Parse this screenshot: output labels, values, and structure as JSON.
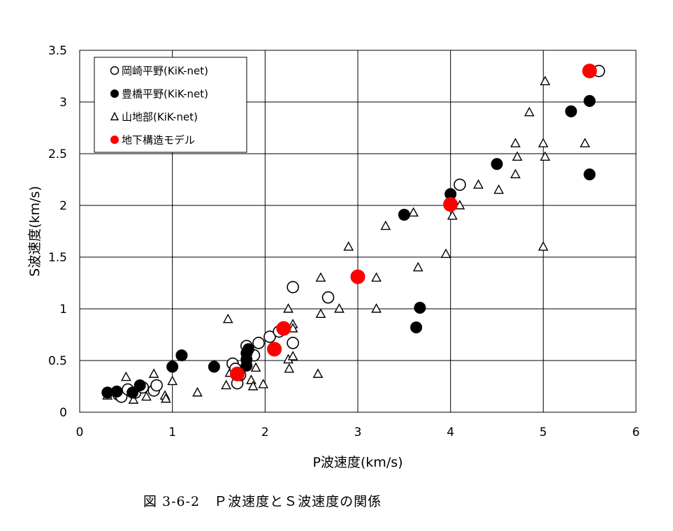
{
  "chart_data": {
    "type": "scatter",
    "xlabel": "P波速度(km/s)",
    "ylabel": "S波速度(km/s)",
    "xlim": [
      0,
      6
    ],
    "ylim": [
      0,
      3.5
    ],
    "x_ticks": [
      "0",
      "1",
      "2",
      "3",
      "4",
      "5",
      "6"
    ],
    "y_ticks": [
      "0",
      "0.5",
      "1",
      "1.5",
      "2",
      "2.5",
      "3",
      "3.5"
    ],
    "grid": true,
    "legend_position": "top-left",
    "series": [
      {
        "name": "岡崎平野(KiK-net)",
        "marker": "open-circle",
        "color": "#000000",
        "points": [
          [
            0.42,
            0.17
          ],
          [
            0.45,
            0.15
          ],
          [
            0.52,
            0.22
          ],
          [
            0.6,
            0.19
          ],
          [
            0.68,
            0.24
          ],
          [
            0.8,
            0.21
          ],
          [
            0.83,
            0.26
          ],
          [
            1.65,
            0.47
          ],
          [
            1.68,
            0.42
          ],
          [
            1.7,
            0.28
          ],
          [
            1.73,
            0.36
          ],
          [
            1.8,
            0.64
          ],
          [
            1.82,
            0.59
          ],
          [
            1.88,
            0.55
          ],
          [
            1.93,
            0.67
          ],
          [
            2.05,
            0.73
          ],
          [
            2.15,
            0.78
          ],
          [
            2.3,
            0.67
          ],
          [
            2.3,
            1.21
          ],
          [
            2.68,
            1.11
          ],
          [
            4.1,
            2.2
          ],
          [
            5.6,
            3.3
          ]
        ]
      },
      {
        "name": "豊橋平野(KiK-net)",
        "marker": "filled-circle",
        "color": "#000000",
        "points": [
          [
            0.3,
            0.19
          ],
          [
            0.4,
            0.2
          ],
          [
            0.57,
            0.19
          ],
          [
            0.65,
            0.26
          ],
          [
            1.0,
            0.44
          ],
          [
            1.1,
            0.55
          ],
          [
            1.45,
            0.44
          ],
          [
            1.8,
            0.45
          ],
          [
            1.8,
            0.51
          ],
          [
            1.8,
            0.57
          ],
          [
            1.82,
            0.61
          ],
          [
            3.5,
            1.91
          ],
          [
            3.63,
            0.82
          ],
          [
            3.67,
            1.01
          ],
          [
            4.0,
            2.11
          ],
          [
            4.5,
            2.4
          ],
          [
            5.3,
            2.91
          ],
          [
            5.5,
            3.01
          ],
          [
            5.5,
            2.3
          ]
        ]
      },
      {
        "name": "山地部(KiK-net)",
        "marker": "open-triangle",
        "color": "#000000",
        "points": [
          [
            0.3,
            0.16
          ],
          [
            0.5,
            0.34
          ],
          [
            0.58,
            0.12
          ],
          [
            0.72,
            0.15
          ],
          [
            0.8,
            0.37
          ],
          [
            0.92,
            0.16
          ],
          [
            0.93,
            0.13
          ],
          [
            1.0,
            0.3
          ],
          [
            1.27,
            0.19
          ],
          [
            1.58,
            0.26
          ],
          [
            1.6,
            0.9
          ],
          [
            1.62,
            0.38
          ],
          [
            1.85,
            0.31
          ],
          [
            1.87,
            0.25
          ],
          [
            1.9,
            0.43
          ],
          [
            1.98,
            0.27
          ],
          [
            2.25,
            0.51
          ],
          [
            2.25,
            1.0
          ],
          [
            2.26,
            0.42
          ],
          [
            2.3,
            0.85
          ],
          [
            2.3,
            0.81
          ],
          [
            2.3,
            0.54
          ],
          [
            2.57,
            0.37
          ],
          [
            2.6,
            0.95
          ],
          [
            2.6,
            1.3
          ],
          [
            2.8,
            1.0
          ],
          [
            2.9,
            1.6
          ],
          [
            3.2,
            1.3
          ],
          [
            3.2,
            1.0
          ],
          [
            3.3,
            1.8
          ],
          [
            3.6,
            1.93
          ],
          [
            3.65,
            1.4
          ],
          [
            3.95,
            1.53
          ],
          [
            4.02,
            1.9
          ],
          [
            4.1,
            2.0
          ],
          [
            4.3,
            2.2
          ],
          [
            4.52,
            2.15
          ],
          [
            4.7,
            2.6
          ],
          [
            4.7,
            2.3
          ],
          [
            4.72,
            2.47
          ],
          [
            4.85,
            2.9
          ],
          [
            5.0,
            2.6
          ],
          [
            5.0,
            1.6
          ],
          [
            5.02,
            3.2
          ],
          [
            5.02,
            2.47
          ],
          [
            5.45,
            2.6
          ]
        ]
      },
      {
        "name": "地下構造モデル",
        "marker": "filled-circle",
        "color": "#ff0000",
        "points": [
          [
            1.7,
            0.37
          ],
          [
            2.1,
            0.61
          ],
          [
            2.2,
            0.81
          ],
          [
            3.0,
            1.31
          ],
          [
            4.0,
            2.01
          ],
          [
            5.5,
            3.3
          ]
        ]
      }
    ]
  },
  "caption": "図 3-6-2　Ｐ波速度とＳ波速度の関係"
}
